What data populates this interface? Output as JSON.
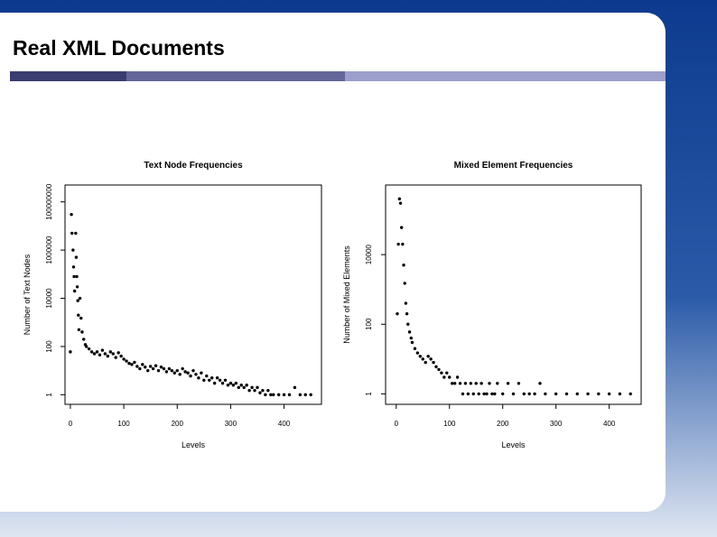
{
  "slide": {
    "title": "Real XML Documents",
    "colors": {
      "bar_dark": "#3b3e70",
      "bar_mid": "#65679b",
      "bar_light": "#9c9ecc",
      "background": "#0d3a8e"
    }
  },
  "chart_data": [
    {
      "type": "scatter",
      "title": "Text Node Frequencies",
      "xlabel": "Levels",
      "ylabel": "Number of Text Nodes",
      "x_ticks": [
        0,
        100,
        200,
        300,
        400
      ],
      "y_ticks": [
        1,
        100,
        10000,
        1000000,
        100000000
      ],
      "y_tick_labels": [
        "1",
        "100",
        "10000",
        "1000000",
        "100000000"
      ],
      "xlim": [
        -10,
        470
      ],
      "ylim": [
        0.4,
        500000000
      ],
      "y_scale": "log",
      "points": [
        [
          0,
          60
        ],
        [
          2,
          30000000
        ],
        [
          3,
          5000000
        ],
        [
          5,
          1000000
        ],
        [
          6,
          200000
        ],
        [
          7,
          80000
        ],
        [
          8,
          20000
        ],
        [
          10,
          5000000
        ],
        [
          11,
          500000
        ],
        [
          12,
          80000
        ],
        [
          13,
          30000
        ],
        [
          14,
          8000
        ],
        [
          15,
          2000
        ],
        [
          16,
          500
        ],
        [
          18,
          10000
        ],
        [
          20,
          1500
        ],
        [
          22,
          400
        ],
        [
          25,
          200
        ],
        [
          28,
          120
        ],
        [
          30,
          100
        ],
        [
          35,
          80
        ],
        [
          40,
          60
        ],
        [
          45,
          50
        ],
        [
          50,
          60
        ],
        [
          55,
          45
        ],
        [
          60,
          70
        ],
        [
          65,
          50
        ],
        [
          70,
          40
        ],
        [
          75,
          60
        ],
        [
          80,
          50
        ],
        [
          85,
          35
        ],
        [
          90,
          55
        ],
        [
          95,
          40
        ],
        [
          100,
          30
        ],
        [
          105,
          25
        ],
        [
          110,
          20
        ],
        [
          115,
          18
        ],
        [
          120,
          22
        ],
        [
          125,
          15
        ],
        [
          130,
          12
        ],
        [
          135,
          18
        ],
        [
          140,
          14
        ],
        [
          145,
          10
        ],
        [
          150,
          15
        ],
        [
          155,
          12
        ],
        [
          160,
          16
        ],
        [
          165,
          10
        ],
        [
          170,
          14
        ],
        [
          175,
          12
        ],
        [
          180,
          9
        ],
        [
          185,
          12
        ],
        [
          190,
          10
        ],
        [
          195,
          8
        ],
        [
          200,
          10
        ],
        [
          205,
          7
        ],
        [
          210,
          12
        ],
        [
          215,
          9
        ],
        [
          220,
          8
        ],
        [
          225,
          6
        ],
        [
          230,
          10
        ],
        [
          235,
          7
        ],
        [
          240,
          5
        ],
        [
          245,
          8
        ],
        [
          250,
          4
        ],
        [
          255,
          6
        ],
        [
          260,
          4
        ],
        [
          265,
          5
        ],
        [
          270,
          3
        ],
        [
          275,
          5
        ],
        [
          280,
          4
        ],
        [
          285,
          3
        ],
        [
          290,
          4
        ],
        [
          295,
          2.5
        ],
        [
          300,
          3
        ],
        [
          305,
          2.5
        ],
        [
          310,
          3
        ],
        [
          315,
          2
        ],
        [
          320,
          2.5
        ],
        [
          325,
          2
        ],
        [
          330,
          2.5
        ],
        [
          335,
          1.5
        ],
        [
          340,
          2
        ],
        [
          345,
          1.5
        ],
        [
          350,
          2
        ],
        [
          355,
          1.2
        ],
        [
          360,
          1.5
        ],
        [
          365,
          1
        ],
        [
          370,
          1.5
        ],
        [
          375,
          1
        ],
        [
          380,
          1
        ],
        [
          390,
          1
        ],
        [
          400,
          1
        ],
        [
          410,
          1
        ],
        [
          420,
          2
        ],
        [
          430,
          1
        ],
        [
          440,
          1
        ],
        [
          450,
          1
        ]
      ]
    },
    {
      "type": "scatter",
      "title": "Mixed Element Frequencies",
      "xlabel": "Levels",
      "ylabel": "Number of Mixed Elements",
      "x_ticks": [
        0,
        100,
        200,
        300,
        400
      ],
      "y_ticks": [
        1,
        100,
        10000
      ],
      "y_tick_labels": [
        "1",
        "100",
        "10000"
      ],
      "xlim": [
        -20,
        460
      ],
      "ylim": [
        0.5,
        1000000
      ],
      "y_scale": "log",
      "points": [
        [
          2,
          200
        ],
        [
          4,
          20000
        ],
        [
          6,
          400000
        ],
        [
          8,
          300000
        ],
        [
          10,
          60000
        ],
        [
          12,
          20000
        ],
        [
          14,
          5000
        ],
        [
          16,
          1500
        ],
        [
          18,
          400
        ],
        [
          20,
          200
        ],
        [
          22,
          100
        ],
        [
          25,
          60
        ],
        [
          28,
          40
        ],
        [
          30,
          30
        ],
        [
          35,
          20
        ],
        [
          40,
          15
        ],
        [
          45,
          12
        ],
        [
          50,
          10
        ],
        [
          55,
          8
        ],
        [
          60,
          12
        ],
        [
          65,
          10
        ],
        [
          70,
          8
        ],
        [
          75,
          6
        ],
        [
          80,
          5
        ],
        [
          85,
          4
        ],
        [
          90,
          3
        ],
        [
          95,
          4
        ],
        [
          100,
          3
        ],
        [
          105,
          2
        ],
        [
          110,
          2
        ],
        [
          115,
          3
        ],
        [
          120,
          2
        ],
        [
          125,
          1
        ],
        [
          130,
          2
        ],
        [
          135,
          1
        ],
        [
          140,
          2
        ],
        [
          145,
          1
        ],
        [
          150,
          2
        ],
        [
          155,
          1
        ],
        [
          160,
          2
        ],
        [
          165,
          1
        ],
        [
          170,
          1
        ],
        [
          175,
          2
        ],
        [
          180,
          1
        ],
        [
          185,
          1
        ],
        [
          190,
          2
        ],
        [
          200,
          1
        ],
        [
          210,
          2
        ],
        [
          220,
          1
        ],
        [
          230,
          2
        ],
        [
          240,
          1
        ],
        [
          250,
          1
        ],
        [
          260,
          1
        ],
        [
          270,
          2
        ],
        [
          280,
          1
        ],
        [
          300,
          1
        ],
        [
          320,
          1
        ],
        [
          340,
          1
        ],
        [
          360,
          1
        ],
        [
          380,
          1
        ],
        [
          400,
          1
        ],
        [
          420,
          1
        ],
        [
          440,
          1
        ]
      ]
    }
  ]
}
